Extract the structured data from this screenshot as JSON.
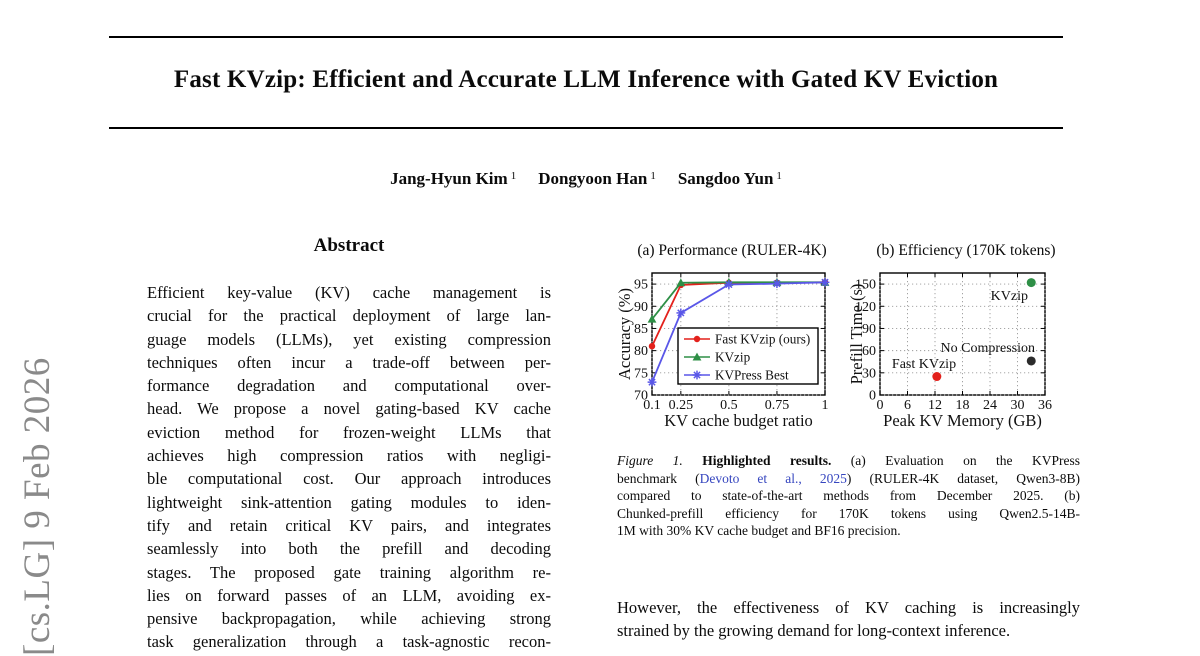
{
  "arxiv_sidebar": {
    "text": "[cs.LG] 9 Feb 2026",
    "color": "#8a8a8a"
  },
  "title": "Fast KVzip: Efficient and Accurate LLM Inference with Gated KV Eviction",
  "authors": [
    {
      "name": "Jang-Hyun Kim",
      "sup": "1"
    },
    {
      "name": "Dongyoon Han",
      "sup": "1"
    },
    {
      "name": "Sangdoo Yun",
      "sup": "1"
    }
  ],
  "abstract": {
    "heading": "Abstract",
    "lines": [
      "Efficient key-value (KV) cache management is",
      "crucial for the practical deployment of large lan-",
      "guage models (LLMs), yet existing compression",
      "techniques often incur a trade-off between per-",
      "formance degradation and computational over-",
      "head. We propose a novel gating-based KV cache",
      "eviction method for frozen-weight LLMs that",
      "achieves high compression ratios with negligi-",
      "ble computational cost. Our approach introduces",
      "lightweight sink-attention gating modules to iden-",
      "tify and retain critical KV pairs, and integrates",
      "seamlessly into both the prefill and decoding",
      "stages. The proposed gate training algorithm re-",
      "lies on forward passes of an LLM, avoiding ex-",
      "pensive backpropagation, while achieving strong",
      "task generalization through a task-agnostic recon-"
    ]
  },
  "figure": {
    "link_color": "#3646bf",
    "caption_lines": [
      [
        {
          "t": "Figure 1.",
          "style": "italic"
        },
        {
          "t": " ",
          "style": ""
        },
        {
          "t": "Highlighted results.",
          "style": "bold"
        },
        {
          "t": " (a) Evaluation on the KVPress",
          "style": ""
        }
      ],
      [
        {
          "t": "benchmark (",
          "style": ""
        },
        {
          "t": "Devoto et al., 2025",
          "style": "link"
        },
        {
          "t": ") (RULER-4K dataset, Qwen3-8B)",
          "style": ""
        }
      ],
      [
        {
          "t": "compared to state-of-the-art methods from December 2025. (b)",
          "style": ""
        }
      ],
      [
        {
          "t": "Chunked-prefill efficiency for 170K tokens using Qwen2.5-14B-",
          "style": ""
        }
      ],
      [
        {
          "t": "1M with 30% KV cache budget and BF16 precision.",
          "style": ""
        }
      ]
    ]
  },
  "body": {
    "lines": [
      "However, the effectiveness of KV caching is increasingly",
      "strained by the growing demand for long-context inference."
    ]
  },
  "chart_data": [
    {
      "type": "line",
      "title": "(a) Performance (RULER-4K)",
      "xlabel": "KV cache budget ratio",
      "ylabel": "Accuracy (%)",
      "x": [
        0.1,
        0.25,
        0.5,
        0.75,
        1.0
      ],
      "xticks": [
        0.1,
        0.25,
        0.5,
        0.75,
        1
      ],
      "xtick_labels": [
        "0.1",
        "0.25",
        "0.5",
        "0.75",
        "1"
      ],
      "yticks": [
        70,
        75,
        80,
        85,
        90,
        95
      ],
      "xlim": [
        0.1,
        1.0
      ],
      "ylim": [
        70,
        97.5
      ],
      "grid": "dotted",
      "legend_position": "inside right-middle",
      "series": [
        {
          "name": "Fast KVzip (ours)",
          "color": "#e3211c",
          "marker": "circle",
          "values": [
            81.0,
            94.8,
            95.3,
            95.3,
            95.4
          ]
        },
        {
          "name": "KVzip",
          "color": "#2e8f46",
          "marker": "triangle",
          "values": [
            87.1,
            95.3,
            95.4,
            95.4,
            95.4
          ]
        },
        {
          "name": "KVPress Best",
          "color": "#5a57e8",
          "marker": "asterisk",
          "values": [
            72.9,
            88.5,
            94.9,
            95.1,
            95.4
          ]
        }
      ]
    },
    {
      "type": "scatter",
      "title": "(b) Efficiency (170K tokens)",
      "xlabel": "Peak KV Memory (GB)",
      "ylabel": "Prefill Time (s)",
      "xticks": [
        0,
        6,
        12,
        18,
        24,
        30,
        36
      ],
      "yticks": [
        0,
        30,
        60,
        90,
        120,
        150
      ],
      "xlim": [
        0,
        36
      ],
      "ylim": [
        0,
        165
      ],
      "grid": "dotted",
      "points": [
        {
          "name": "Fast KVzip",
          "x": 12.4,
          "y": 25,
          "color": "#e3211c"
        },
        {
          "name": "KVzip",
          "x": 33.0,
          "y": 152,
          "color": "#2e8f46"
        },
        {
          "name": "No Compression",
          "x": 33.0,
          "y": 46,
          "color": "#2b2b2b"
        }
      ]
    }
  ]
}
